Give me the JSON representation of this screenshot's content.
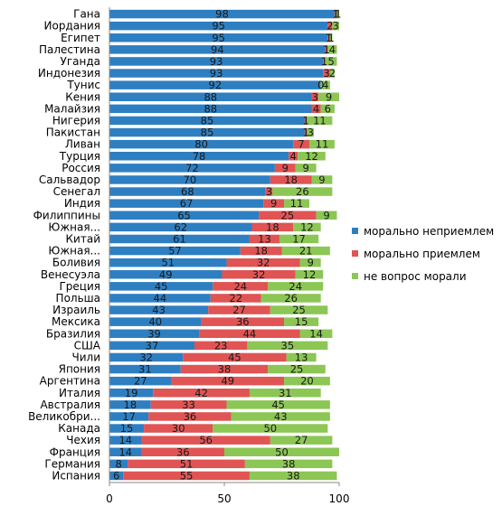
{
  "chart_data": {
    "type": "bar",
    "orientation": "horizontal",
    "stacked": true,
    "categories": [
      "Гана",
      "Иордания",
      "Египет",
      "Палестина",
      "Уганда",
      "Индонезия",
      "Тунис",
      "Кения",
      "Малайзия",
      "Нигерия",
      "Пакистан",
      "Ливан",
      "Турция",
      "Россия",
      "Сальвадор",
      "Сенегал",
      "Индия",
      "Филиппины",
      "Южная...",
      "Китай",
      "Южная...",
      "Боливия",
      "Венесуэла",
      "Греция",
      "Польша",
      "Израиль",
      "Мексика",
      "Бразилия",
      "США",
      "Чили",
      "Япония",
      "Аргентина",
      "Италия",
      "Австралия",
      "Великобри...",
      "Канада",
      "Чехия",
      "Франция",
      "Германия",
      "Испания"
    ],
    "series": [
      {
        "name": "морально неприемлем",
        "color": "#2e7fc2",
        "values": [
          98,
          95,
          95,
          94,
          93,
          93,
          92,
          88,
          88,
          85,
          85,
          80,
          78,
          72,
          70,
          68,
          67,
          65,
          62,
          61,
          57,
          51,
          49,
          45,
          44,
          43,
          40,
          39,
          37,
          32,
          31,
          27,
          19,
          18,
          17,
          15,
          14,
          14,
          8,
          6
        ]
      },
      {
        "name": "морально приемлем",
        "color": "#e05454",
        "values": [
          1,
          2,
          1,
          1,
          1,
          3,
          0,
          3,
          4,
          1,
          1,
          7,
          4,
          9,
          18,
          3,
          9,
          25,
          18,
          13,
          18,
          32,
          32,
          24,
          22,
          27,
          36,
          44,
          23,
          45,
          38,
          49,
          42,
          33,
          36,
          30,
          56,
          36,
          51,
          55
        ]
      },
      {
        "name": "не вопрос морали",
        "color": "#8cc655",
        "values": [
          1,
          3,
          1,
          4,
          5,
          2,
          4,
          9,
          6,
          11,
          3,
          11,
          12,
          9,
          9,
          26,
          11,
          9,
          12,
          17,
          21,
          9,
          12,
          24,
          26,
          25,
          15,
          14,
          35,
          13,
          25,
          20,
          31,
          45,
          43,
          50,
          27,
          50,
          38,
          38
        ]
      }
    ],
    "xlim": [
      0,
      100
    ],
    "xticks": [
      "0",
      "50",
      "100"
    ],
    "legend_position": "right",
    "grid": false
  }
}
